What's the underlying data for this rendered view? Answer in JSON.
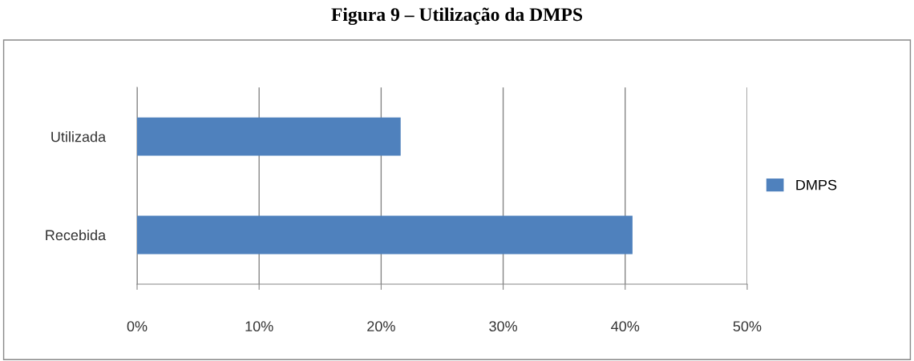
{
  "chart_data": {
    "type": "bar",
    "title": "Figura 9 – Utilização da DMPS",
    "orientation": "horizontal",
    "categories": [
      "Utilizada",
      "Recebida"
    ],
    "series": [
      {
        "name": "DMPS",
        "color": "#4f81bd",
        "values": [
          21.6,
          40.6
        ]
      }
    ],
    "xlim": [
      0,
      50
    ],
    "xticks": [
      {
        "value": 0,
        "label": "0%"
      },
      {
        "value": 10,
        "label": "10%"
      },
      {
        "value": 20,
        "label": "20%"
      },
      {
        "value": 30,
        "label": "30%"
      },
      {
        "value": 40,
        "label": "40%"
      },
      {
        "value": 50,
        "label": "50%"
      }
    ],
    "grid": "x",
    "legend": "right"
  }
}
